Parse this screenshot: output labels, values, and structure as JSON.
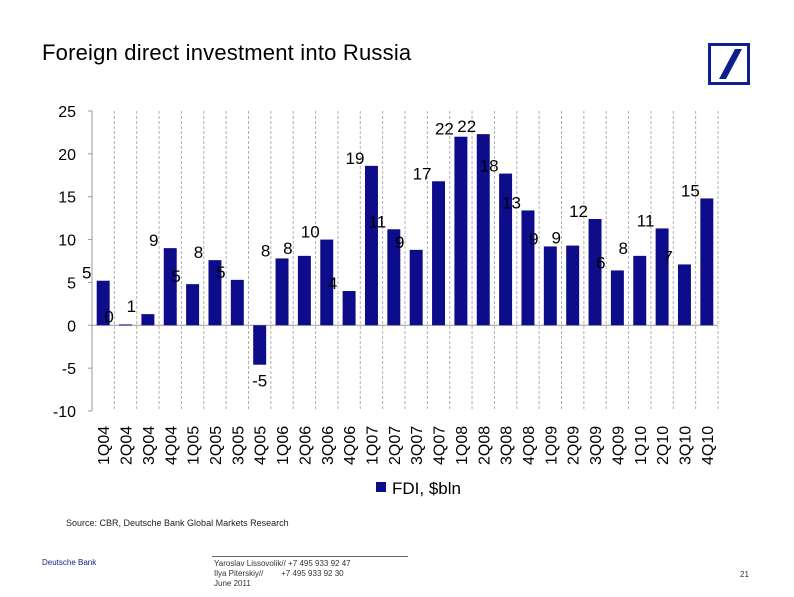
{
  "header": {
    "title": "Foreign direct investment into Russia",
    "logo_name": "deutsche-bank-logo",
    "logo_color": "#0d1f8c"
  },
  "chart_data": {
    "type": "bar",
    "title": "",
    "xlabel": "",
    "ylabel": "",
    "ylim": [
      -10,
      25
    ],
    "yticks": [
      25,
      20,
      15,
      10,
      5,
      0,
      -5,
      -10
    ],
    "grid": "vertical dashed",
    "legend_position": "bottom-center",
    "bar_color": "#0d0d8c",
    "categories": [
      "1Q04",
      "2Q04",
      "3Q04",
      "4Q04",
      "1Q05",
      "2Q05",
      "3Q05",
      "4Q05",
      "1Q06",
      "2Q06",
      "3Q06",
      "4Q06",
      "1Q07",
      "2Q07",
      "3Q07",
      "4Q07",
      "1Q08",
      "2Q08",
      "3Q08",
      "4Q08",
      "1Q09",
      "2Q09",
      "3Q09",
      "4Q09",
      "1Q10",
      "2Q10",
      "3Q10",
      "4Q10"
    ],
    "series": [
      {
        "name": "FDI, $bln",
        "values": [
          5.2,
          0.1,
          1.3,
          9,
          4.8,
          7.6,
          5.3,
          -4.6,
          7.8,
          8.1,
          10,
          4,
          18.6,
          11.2,
          8.8,
          16.8,
          22,
          22.3,
          17.7,
          13.4,
          9.2,
          9.3,
          12.4,
          6.4,
          8.1,
          11.3,
          7.1,
          14.8
        ],
        "labels": [
          "5",
          "0",
          "1",
          "9",
          "5",
          "8",
          "5",
          "-5",
          "8",
          "8",
          "10",
          "4",
          "19",
          "11",
          "9",
          "17",
          "22",
          "22",
          "18",
          "13",
          "9",
          "9",
          "12",
          "6",
          "8",
          "11",
          "7",
          "15"
        ]
      }
    ]
  },
  "source": "Source: CBR, Deutsche Bank Global Markets Research",
  "footer": {
    "brand": "Deutsche Bank",
    "contact_lines": [
      "Yaroslav Lissovolik// +7 495 933 92 47",
      "Ilya Piterskiy//        +7 495 933 92 30",
      "June 2011"
    ],
    "page_number": "21"
  }
}
